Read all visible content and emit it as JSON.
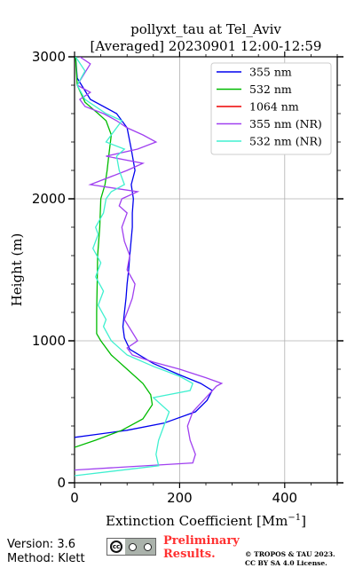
{
  "chart_data": {
    "type": "line",
    "title_line1": "pollyxt_tau at Tel_Aviv",
    "title_line2": "[Averaged] 20230901 12:00-12:59",
    "xlabel": "Extinction Coefficient [Mm",
    "xlabel_sup": "−1",
    "xlabel_end": "]",
    "ylabel": "Height (m)",
    "xlim": [
      0,
      500
    ],
    "ylim": [
      0,
      3000
    ],
    "xticks": [
      0,
      200,
      400
    ],
    "xtick_labels": [
      "0",
      "200",
      "400"
    ],
    "yticks": [
      0,
      1000,
      2000,
      3000
    ],
    "ytick_labels": [
      "0",
      "1000",
      "2000",
      "3000"
    ],
    "grid": true,
    "legend_position": "top-right",
    "series": [
      {
        "name": "355 nm",
        "color": "#0000ee",
        "x": [
          0,
          40,
          100,
          170,
          230,
          252,
          262,
          240,
          200,
          150,
          105,
          95,
          92,
          95,
          98,
          100,
          103,
          105,
          110,
          110,
          112,
          108,
          115,
          108,
          100,
          80,
          30,
          5,
          2
        ],
        "y": [
          320,
          340,
          370,
          420,
          500,
          580,
          650,
          700,
          760,
          840,
          940,
          1020,
          1100,
          1200,
          1300,
          1400,
          1500,
          1600,
          1800,
          1900,
          2000,
          2100,
          2200,
          2350,
          2500,
          2600,
          2700,
          2850,
          3000
        ]
      },
      {
        "name": "532 nm",
        "color": "#00bb00",
        "x": [
          0,
          40,
          90,
          130,
          148,
          145,
          130,
          100,
          70,
          50,
          42,
          42,
          43,
          44,
          48,
          50,
          58,
          62,
          65,
          70,
          60,
          45,
          20,
          5,
          2
        ],
        "y": [
          250,
          300,
          370,
          450,
          550,
          620,
          700,
          800,
          900,
          1000,
          1050,
          1200,
          1400,
          1600,
          1800,
          2000,
          2100,
          2200,
          2300,
          2450,
          2550,
          2600,
          2680,
          2800,
          3000
        ]
      },
      {
        "name": "1064 nm",
        "color": "#ee0000",
        "x": [],
        "y": []
      },
      {
        "name": "355 nm (NR)",
        "color": "#a040f0",
        "x": [
          0,
          225,
          230,
          220,
          215,
          225,
          240,
          255,
          270,
          280,
          250,
          200,
          150,
          110,
          100,
          120,
          95,
          105,
          110,
          115,
          100,
          105,
          95,
          90,
          100,
          85,
          90,
          120,
          30,
          100,
          130,
          60,
          120,
          155,
          130,
          100,
          80,
          55,
          20,
          10,
          30,
          5,
          30,
          10
        ],
        "y": [
          90,
          140,
          200,
          300,
          400,
          500,
          560,
          620,
          680,
          700,
          740,
          800,
          850,
          900,
          950,
          1000,
          1150,
          1250,
          1300,
          1400,
          1500,
          1600,
          1700,
          1800,
          1900,
          1950,
          2000,
          2050,
          2100,
          2200,
          2250,
          2300,
          2350,
          2400,
          2450,
          2500,
          2550,
          2600,
          2650,
          2700,
          2750,
          2800,
          2950,
          3000
        ]
      },
      {
        "name": "532 nm (NR)",
        "color": "#40f0d0",
        "x": [
          0,
          160,
          155,
          160,
          170,
          180,
          150,
          220,
          225,
          200,
          150,
          100,
          70,
          55,
          60,
          45,
          55,
          40,
          50,
          35,
          45,
          40,
          55,
          60,
          70,
          95,
          85,
          80,
          95,
          60,
          70,
          90,
          60,
          20,
          5,
          20,
          2
        ],
        "y": [
          50,
          120,
          200,
          300,
          400,
          500,
          600,
          650,
          700,
          750,
          820,
          900,
          1000,
          1100,
          1150,
          1250,
          1350,
          1450,
          1550,
          1650,
          1750,
          1800,
          1900,
          2000,
          2050,
          2100,
          2200,
          2300,
          2350,
          2400,
          2450,
          2550,
          2600,
          2700,
          2800,
          2900,
          3000
        ]
      }
    ]
  },
  "footer": {
    "version": "Version: 3.6",
    "method": "Method: Klett",
    "cc_icon": "creative-commons-by-sa-icon",
    "prelim_line1": "Preliminary",
    "prelim_line2": "Results.",
    "copyright_line1": "© TROPOS & TAU 2023.",
    "copyright_line2": "CC BY SA 4.0 License."
  }
}
